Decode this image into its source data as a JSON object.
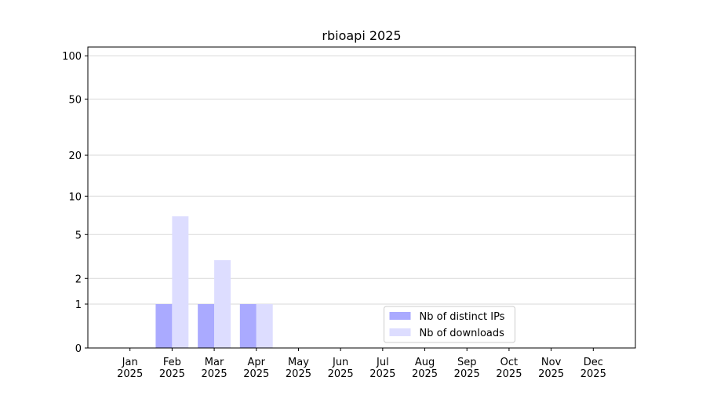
{
  "chart_data": {
    "type": "bar",
    "title": "rbioapi 2025",
    "categories": [
      [
        "Jan",
        "2025"
      ],
      [
        "Feb",
        "2025"
      ],
      [
        "Mar",
        "2025"
      ],
      [
        "Apr",
        "2025"
      ],
      [
        "May",
        "2025"
      ],
      [
        "Jun",
        "2025"
      ],
      [
        "Jul",
        "2025"
      ],
      [
        "Aug",
        "2025"
      ],
      [
        "Sep",
        "2025"
      ],
      [
        "Oct",
        "2025"
      ],
      [
        "Nov",
        "2025"
      ],
      [
        "Dec",
        "2025"
      ]
    ],
    "series": [
      {
        "name": "Nb of distinct IPs",
        "color": "#aaaaff",
        "values": [
          0,
          1,
          1,
          1,
          0,
          0,
          0,
          0,
          0,
          0,
          0,
          0
        ]
      },
      {
        "name": "Nb of downloads",
        "color": "#ddddff",
        "values": [
          0,
          7,
          3,
          1,
          0,
          0,
          0,
          0,
          0,
          0,
          0,
          0
        ]
      }
    ],
    "yscale": "log1p",
    "ylim": [
      0,
      115
    ],
    "yticks": [
      0,
      1,
      2,
      5,
      10,
      20,
      50,
      100
    ],
    "grid": true,
    "legend": "lower center"
  }
}
